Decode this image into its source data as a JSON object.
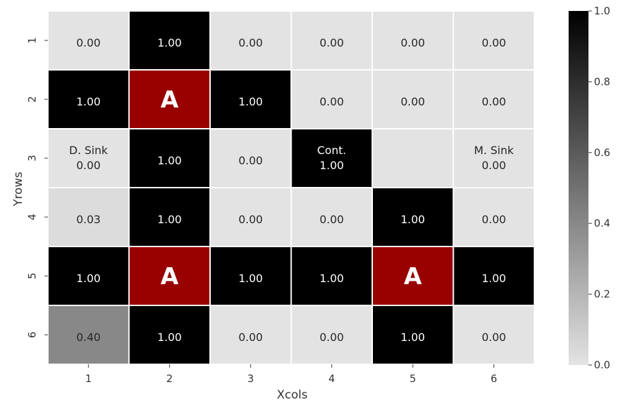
{
  "chart_data": {
    "type": "heatmap",
    "xlabel": "Xcols",
    "ylabel": "Yrows",
    "x_ticks": [
      "1",
      "2",
      "3",
      "4",
      "5",
      "6"
    ],
    "y_ticks": [
      "1",
      "2",
      "3",
      "4",
      "5",
      "6"
    ],
    "values": [
      [
        0.0,
        1.0,
        0.0,
        0.0,
        0.0,
        0.0
      ],
      [
        1.0,
        null,
        1.0,
        0.0,
        0.0,
        0.0
      ],
      [
        0.0,
        1.0,
        0.0,
        1.0,
        0.0,
        0.0
      ],
      [
        0.03,
        1.0,
        0.0,
        0.0,
        1.0,
        0.0
      ],
      [
        1.0,
        null,
        1.0,
        1.0,
        null,
        1.0
      ],
      [
        0.4,
        1.0,
        0.0,
        0.0,
        1.0,
        0.0
      ]
    ],
    "value_labels": [
      [
        "0.00",
        "1.00",
        "0.00",
        "0.00",
        "0.00",
        "0.00"
      ],
      [
        "1.00",
        "",
        "1.00",
        "0.00",
        "0.00",
        "0.00"
      ],
      [
        "0.00",
        "1.00",
        "0.00",
        "1.00",
        "",
        "0.00"
      ],
      [
        "0.03",
        "1.00",
        "0.00",
        "0.00",
        "1.00",
        "0.00"
      ],
      [
        "1.00",
        "",
        "1.00",
        "1.00",
        "",
        "1.00"
      ],
      [
        "0.40",
        "1.00",
        "0.00",
        "0.00",
        "1.00",
        "0.00"
      ]
    ],
    "cell_names": [
      [
        "",
        "",
        "",
        "",
        "",
        ""
      ],
      [
        "",
        "",
        "",
        "",
        "",
        ""
      ],
      [
        "D. Sink",
        "",
        "",
        "Cont.",
        "",
        "M. Sink"
      ],
      [
        "",
        "",
        "",
        "",
        "",
        ""
      ],
      [
        "",
        "",
        "",
        "",
        "",
        ""
      ],
      [
        "",
        "",
        "",
        "",
        "",
        ""
      ]
    ],
    "agents": [
      {
        "row": 2,
        "col": 2,
        "label": "A"
      },
      {
        "row": 5,
        "col": 2,
        "label": "A"
      },
      {
        "row": 5,
        "col": 5,
        "label": "A"
      }
    ],
    "agent_color": "#990000",
    "colorbar": {
      "range": [
        0.0,
        1.0
      ],
      "ticks": [
        "0.0",
        "0.2",
        "0.4",
        "0.6",
        "0.8",
        "1.0"
      ],
      "low_color": "#e3e3e3",
      "high_color": "#000000"
    },
    "grid": false
  }
}
